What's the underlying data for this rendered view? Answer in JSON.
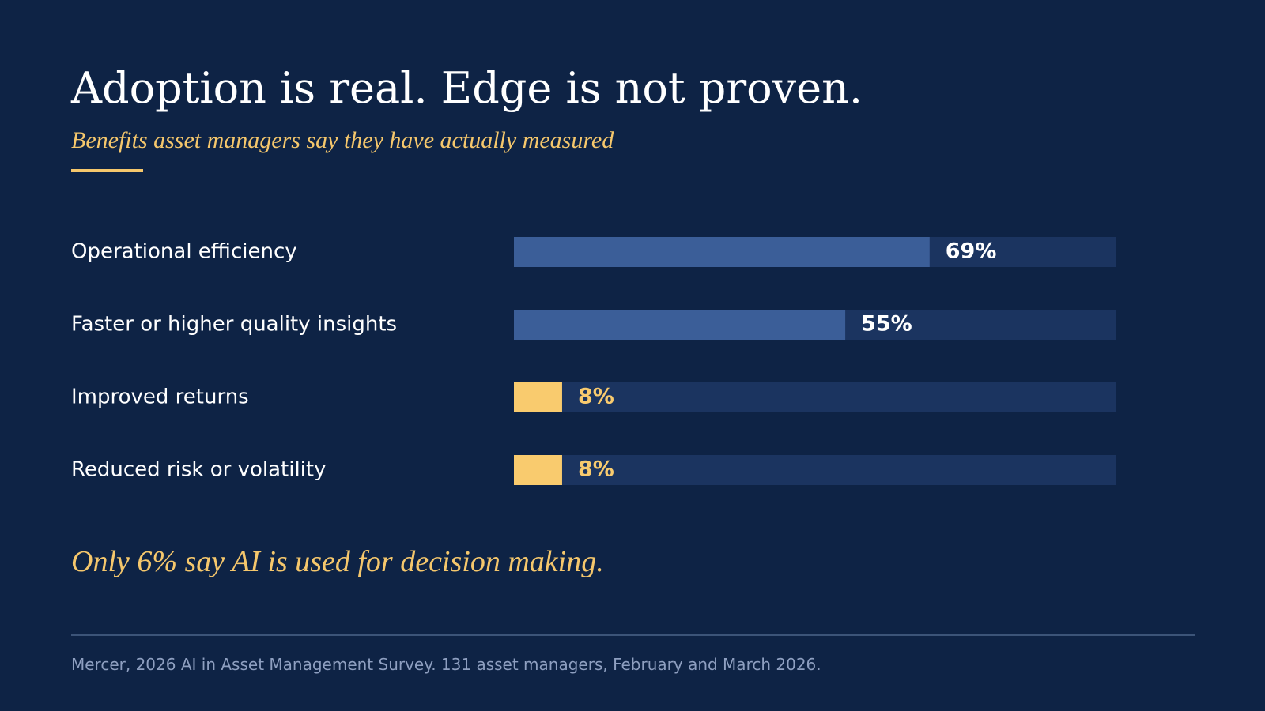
{
  "title": "Adoption is real. Edge is not proven.",
  "subtitle": "Benefits asset managers say they have actually measured",
  "chart_data": {
    "type": "bar",
    "orientation": "horizontal",
    "categories": [
      "Operational efficiency",
      "Faster or higher quality insights",
      "Improved returns",
      "Reduced risk or volatility"
    ],
    "values": [
      69,
      55,
      8,
      8
    ],
    "value_labels": [
      "69%",
      "55%",
      "8%",
      "8%"
    ],
    "highlighted": [
      false,
      false,
      true,
      true
    ],
    "xlim": [
      0,
      100
    ],
    "grid": false,
    "legend": "none"
  },
  "callout": "Only 6% say AI is used for decision making.",
  "source": "Mercer, 2026 AI in Asset Management Survey. 131 asset managers, February and March 2026.",
  "colors": {
    "background": "#0e2345",
    "track": "#1b3460",
    "bar": "#3b5e98",
    "highlight": "#f9cb6e",
    "accent": "#f5c76c",
    "text": "#ffffff",
    "muted": "#8e9fc0"
  }
}
